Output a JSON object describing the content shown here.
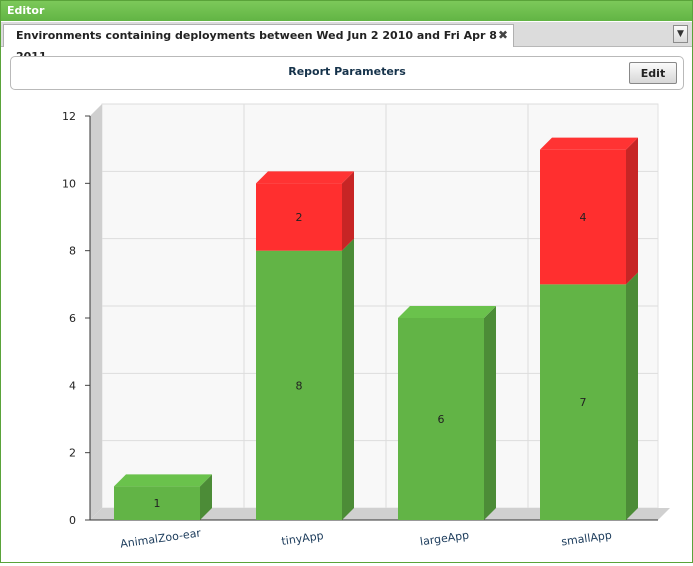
{
  "editor": {
    "title": "Editor"
  },
  "tab": {
    "label": "Environments containing deployments between Wed Jun 2 2010 and Fri Apr 8 2011",
    "close_glyph": "✖",
    "menu_glyph": "▼"
  },
  "report_parameters": {
    "label": "Report Parameters",
    "edit_label": "Edit"
  },
  "colors": {
    "accent": "#62b444",
    "series_green": "#62b446",
    "series_red": "#ff2f2f"
  },
  "chart_data": {
    "type": "bar",
    "stacked": true,
    "three_d": true,
    "categories": [
      "AnimalZoo-ear",
      "tinyApp",
      "largeApp",
      "smallApp"
    ],
    "series": [
      {
        "color": "#62b446",
        "values": [
          1,
          8,
          6,
          7
        ]
      },
      {
        "color": "#ff2f2f",
        "values": [
          0,
          2,
          0,
          4
        ]
      }
    ],
    "data_labels": [
      [
        "1",
        "8",
        "6",
        "7"
      ],
      [
        "",
        "2",
        "",
        "4"
      ]
    ],
    "ylim": [
      0,
      12
    ],
    "yticks": [
      "0",
      "2",
      "4",
      "6",
      "8",
      "10",
      "12"
    ],
    "grid": true,
    "legend": "none"
  }
}
